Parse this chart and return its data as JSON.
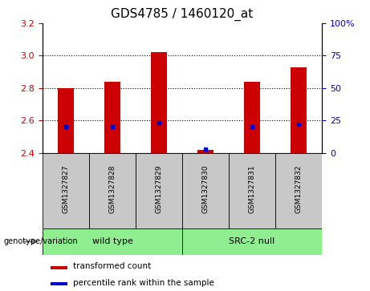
{
  "title": "GDS4785 / 1460120_at",
  "samples": [
    "GSM1327827",
    "GSM1327828",
    "GSM1327829",
    "GSM1327830",
    "GSM1327831",
    "GSM1327832"
  ],
  "transformed_count": [
    2.8,
    2.84,
    3.02,
    2.42,
    2.84,
    2.93
  ],
  "percentile_rank": [
    20,
    20,
    23,
    3,
    20,
    22
  ],
  "bar_bottom": 2.4,
  "ylim_left": [
    2.4,
    3.2
  ],
  "ylim_right": [
    0,
    100
  ],
  "yticks_left": [
    2.4,
    2.6,
    2.8,
    3.0,
    3.2
  ],
  "yticks_right": [
    0,
    25,
    50,
    75,
    100
  ],
  "ytick_labels_right": [
    "0",
    "25",
    "50",
    "75",
    "100%"
  ],
  "bar_color": "#CC0000",
  "marker_color": "#0000CC",
  "bar_width": 0.35,
  "label_fontsize": 8,
  "title_fontsize": 11,
  "sample_box_color": "#C8C8C8",
  "group_box_color": "#90EE90",
  "genotype_label": "genotype/variation",
  "legend_labels": [
    "transformed count",
    "percentile rank within the sample"
  ],
  "wild_type_label": "wild type",
  "src2_null_label": "SRC-2 null",
  "hgrid_values": [
    2.6,
    2.8,
    3.0
  ]
}
